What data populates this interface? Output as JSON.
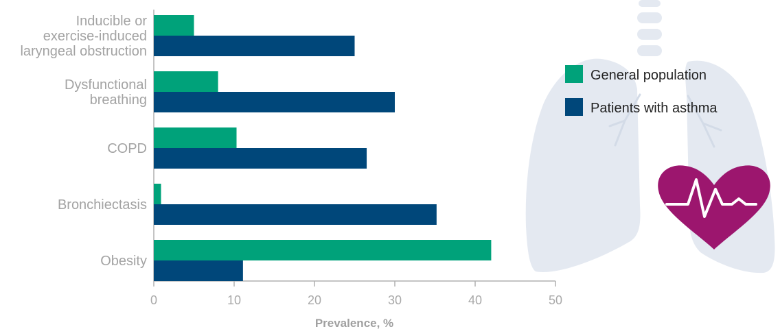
{
  "chart_data": {
    "type": "bar",
    "orientation": "horizontal",
    "categories": [
      [
        "Inducible or",
        "exercise-induced",
        "laryngeal obstruction"
      ],
      [
        "Dysfunctional",
        "breathing"
      ],
      [
        "COPD"
      ],
      [
        "Bronchiectasis"
      ],
      [
        "Obesity"
      ]
    ],
    "series": [
      {
        "name": "General population",
        "color": "#00a27a",
        "values": [
          5,
          8,
          10.3,
          0.9,
          42
        ]
      },
      {
        "name": "Patients with asthma",
        "color": "#00477a",
        "values": [
          25,
          30,
          26.5,
          35.2,
          11.1
        ]
      }
    ],
    "xlabel": "Prevalence, %",
    "xlim": [
      0,
      50
    ],
    "xticks": [
      0,
      10,
      20,
      30,
      40,
      50
    ],
    "grid": false,
    "legend_position": "right",
    "colors": {
      "axis": "#b0b0b0",
      "tick_text": "#a9a9a9",
      "category_text": "#a3a3a3",
      "xlabel_text": "#a0a0a0",
      "legend_text": "#222222",
      "lungs": "#e4e9f1",
      "heart": "#9c166e"
    },
    "decoration": {
      "lungs": "lungs-illustration",
      "heart": "heartbeat-heart-icon"
    }
  }
}
